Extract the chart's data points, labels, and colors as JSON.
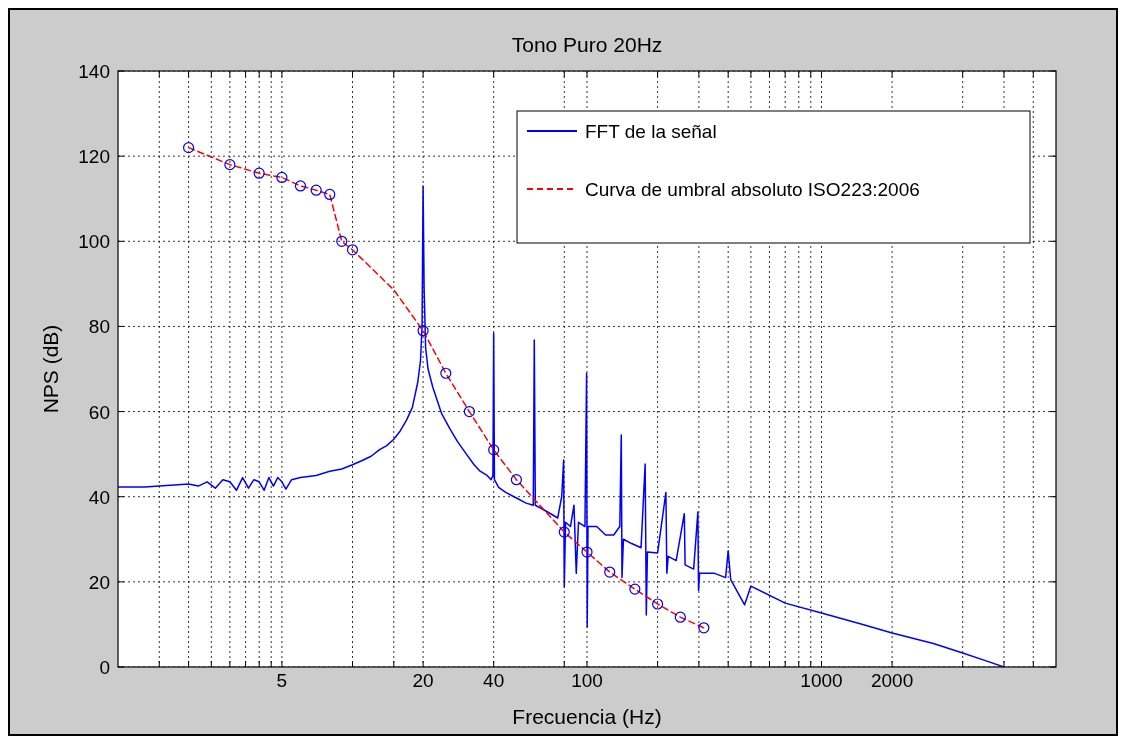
{
  "chart_data": {
    "type": "line",
    "title": "Tono Puro 20Hz",
    "xlabel": "Frecuencia (Hz)",
    "ylabel": "NPS (dB)",
    "log": "x",
    "grid": true,
    "legend": "top right",
    "xlim": [
      1,
      10000
    ],
    "ylim": [
      0,
      140
    ],
    "xticks": [
      {
        "value": 1.5,
        "label": null
      },
      {
        "value": 2,
        "label": null
      },
      {
        "value": 2.5,
        "label": null
      },
      {
        "value": 3,
        "label": null
      },
      {
        "value": 3.5,
        "label": null
      },
      {
        "value": 4,
        "label": null
      },
      {
        "value": 4.5,
        "label": null
      },
      5,
      {
        "value": 10,
        "label": null
      },
      {
        "value": 15,
        "label": null
      },
      20,
      40,
      {
        "value": 80,
        "label": null
      },
      100,
      {
        "value": 200,
        "label": null
      },
      {
        "value": 300,
        "label": null
      },
      {
        "value": 400,
        "label": null
      },
      {
        "value": 500,
        "label": null
      },
      {
        "value": 600,
        "label": null
      },
      {
        "value": 700,
        "label": null
      },
      {
        "value": 800,
        "label": null
      },
      {
        "value": 900,
        "label": null
      },
      1000,
      2000,
      {
        "value": 4000,
        "label": null
      },
      {
        "value": 6000,
        "label": null
      },
      {
        "value": 8000,
        "label": null
      }
    ],
    "yticks": [
      0,
      20,
      40,
      60,
      80,
      100,
      120,
      140
    ],
    "series": [
      {
        "name": "FFT de la señal",
        "color": "#0000ff",
        "line_style": "solid",
        "marker": "none",
        "x": [
          1,
          1.3,
          1.5,
          1.8,
          2,
          2.2,
          2.4,
          2.6,
          2.8,
          3,
          3.2,
          3.4,
          3.6,
          3.8,
          4,
          4.2,
          4.4,
          4.6,
          4.8,
          5,
          5.2,
          5.5,
          6,
          7,
          8,
          9,
          10,
          11,
          12,
          13,
          14,
          15,
          16,
          17,
          18,
          19,
          19.5,
          19.8,
          20,
          20.2,
          20.5,
          21,
          22,
          24,
          26,
          28,
          30.6,
          33,
          35,
          37.5,
          39,
          39.7,
          40,
          40.3,
          42,
          45,
          50,
          55,
          59,
          59.6,
          60.2,
          65,
          70,
          75,
          78,
          79.5,
          80,
          81,
          85,
          88,
          90,
          92,
          98,
          99.6,
          100.2,
          101,
          110,
          120,
          130,
          138,
          140,
          141,
          143,
          155,
          170,
          177,
          179,
          181,
          200,
          217,
          219,
          222,
          240,
          260,
          262,
          285,
          297,
          299,
          302,
          350,
          390,
          400,
          410,
          470,
          500,
          700,
          1000,
          1500,
          2000,
          3000,
          4000,
          5000,
          6000
        ],
        "values": [
          42.3,
          42.3,
          42.5,
          42.8,
          43,
          42.5,
          43.5,
          42,
          44,
          43.5,
          41.5,
          44.5,
          42,
          44,
          43.5,
          41.5,
          44.5,
          42.5,
          44.5,
          43.5,
          41.8,
          44,
          44.5,
          45,
          46,
          46.5,
          47.5,
          48.5,
          49.5,
          51,
          52,
          53.5,
          55.5,
          58,
          61,
          67,
          72,
          80,
          113,
          89,
          75,
          70,
          65.7,
          59.5,
          56,
          53,
          50,
          47.5,
          46,
          45,
          44,
          45,
          78.4,
          44,
          42.2,
          41,
          39.7,
          38.5,
          38,
          76.8,
          38,
          37,
          36,
          35,
          40,
          48.6,
          18.8,
          34,
          33,
          38,
          22,
          34,
          33,
          69,
          9.4,
          33,
          33,
          31,
          31,
          33,
          54.5,
          21,
          30,
          29,
          28,
          47.7,
          12.2,
          27,
          26.8,
          41,
          22,
          26,
          25,
          36,
          24,
          23,
          36.4,
          18,
          22,
          22,
          21,
          27.3,
          20.5,
          14.6,
          19,
          15,
          12.7,
          10,
          8,
          5.5,
          3.3,
          1.5,
          0
        ]
      },
      {
        "name": "Curva de umbral absoluto ISO223:2006",
        "color": "#ff0000",
        "line_style": "dashed",
        "marker": "none",
        "x": [
          2,
          3,
          4,
          5,
          6,
          7,
          8,
          9,
          10,
          15,
          20,
          25,
          31.5,
          40,
          50,
          80,
          100,
          125,
          160,
          200,
          250,
          315
        ],
        "values": [
          122,
          118,
          116,
          115,
          113,
          112,
          111,
          100,
          98,
          88.6,
          79,
          69,
          60,
          51,
          44,
          31.7,
          27,
          22.3,
          18.3,
          14.8,
          11.7,
          9.2
        ]
      },
      {
        "type": "scatter",
        "color": "#0000ff",
        "marker": "circle",
        "x": [
          2,
          3,
          4,
          5,
          6,
          7,
          8,
          9,
          10,
          20,
          25,
          31.5,
          40,
          50,
          80,
          100,
          125,
          160,
          200,
          250,
          315
        ],
        "values": [
          122,
          118,
          116,
          115,
          113,
          112,
          111,
          100,
          98,
          79,
          69,
          60,
          51,
          44,
          31.7,
          27,
          22.3,
          18.3,
          14.8,
          11.7,
          9.2
        ]
      }
    ]
  }
}
